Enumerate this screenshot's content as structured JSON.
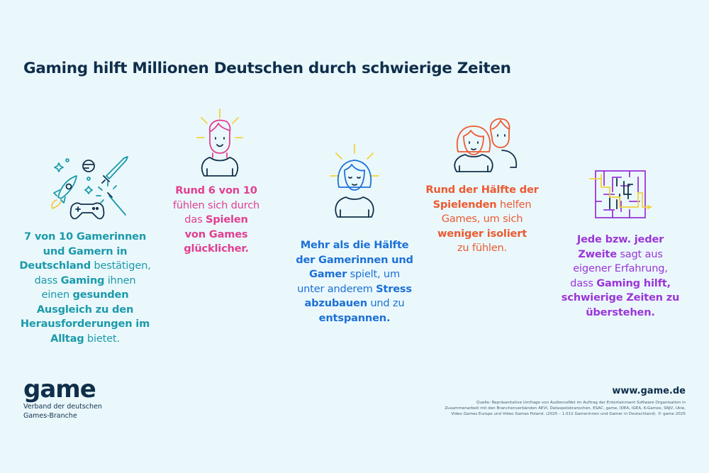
{
  "title": "Gaming hilft Millionen Deutschen durch schwierige Zeiten",
  "colors": {
    "background": "#eaf8fc",
    "title": "#0f2e4a",
    "teal": "#1b9aaa",
    "pink": "#e23f8f",
    "blue": "#1d71d6",
    "orange": "#ec5a30",
    "purple": "#9b36d8",
    "yellow_accent": "#f2d23c"
  },
  "stats": [
    {
      "icon": "gaming-items-icon",
      "color": "#1b9aaa",
      "lines": [
        [
          {
            "t": "7 von 10 Gamerinnen",
            "b": true
          }
        ],
        [
          {
            "t": "und Gamern in",
            "b": true
          }
        ],
        [
          {
            "t": "Deutschland",
            "b": true
          },
          {
            "t": " bestätigen,",
            "b": false
          }
        ],
        [
          {
            "t": "dass ",
            "b": false
          },
          {
            "t": "Gaming",
            "b": true
          },
          {
            "t": " ihnen",
            "b": false
          }
        ],
        [
          {
            "t": "einen ",
            "b": false
          },
          {
            "t": "gesunden",
            "b": true
          }
        ],
        [
          {
            "t": "Ausgleich zu den",
            "b": true
          }
        ],
        [
          {
            "t": "Herausforderungen im",
            "b": true
          }
        ],
        [
          {
            "t": "Alltag",
            "b": true
          },
          {
            "t": " bietet.",
            "b": false
          }
        ]
      ]
    },
    {
      "icon": "happy-man-icon",
      "color": "#e23f8f",
      "lines": [
        [
          {
            "t": "Rund 6 von 10",
            "b": true
          }
        ],
        [
          {
            "t": "fühlen sich durch",
            "b": false
          }
        ],
        [
          {
            "t": "das ",
            "b": false
          },
          {
            "t": "Spielen",
            "b": true
          }
        ],
        [
          {
            "t": "von Games",
            "b": true
          }
        ],
        [
          {
            "t": "glücklicher.",
            "b": true
          }
        ]
      ]
    },
    {
      "icon": "relaxed-woman-icon",
      "color": "#1d71d6",
      "lines": [
        [
          {
            "t": "Mehr als die Hälfte",
            "b": true
          }
        ],
        [
          {
            "t": "der Gamerinnen und",
            "b": true
          }
        ],
        [
          {
            "t": "Gamer",
            "b": true
          },
          {
            "t": " spielt, um",
            "b": false
          }
        ],
        [
          {
            "t": "unter anderem ",
            "b": false
          },
          {
            "t": "Stress",
            "b": true
          }
        ],
        [
          {
            "t": "abzubauen",
            "b": true
          },
          {
            "t": " und zu",
            "b": false
          }
        ],
        [
          {
            "t": "entspannen.",
            "b": true
          }
        ]
      ]
    },
    {
      "icon": "two-people-icon",
      "color": "#ec5a30",
      "lines": [
        [
          {
            "t": "Rund der Hälfte der",
            "b": true
          }
        ],
        [
          {
            "t": "Spielenden",
            "b": true
          },
          {
            "t": " helfen",
            "b": false
          }
        ],
        [
          {
            "t": "Games, um sich",
            "b": false
          }
        ],
        [
          {
            "t": "weniger isoliert",
            "b": true
          }
        ],
        [
          {
            "t": "zu fühlen.",
            "b": false
          }
        ]
      ]
    },
    {
      "icon": "maze-icon",
      "color": "#9b36d8",
      "lines": [
        [
          {
            "t": "Jede bzw. jeder",
            "b": true
          }
        ],
        [
          {
            "t": "Zweite",
            "b": true
          },
          {
            "t": " sagt aus",
            "b": false
          }
        ],
        [
          {
            "t": "eigener Erfahrung,",
            "b": false
          }
        ],
        [
          {
            "t": "dass ",
            "b": false
          },
          {
            "t": "Gaming hilft,",
            "b": true
          }
        ],
        [
          {
            "t": "schwierige Zeiten zu",
            "b": true
          }
        ],
        [
          {
            "t": "überstehen.",
            "b": true
          }
        ]
      ]
    }
  ],
  "footer": {
    "logo_word": "game",
    "logo_sub_1": "Verband der deutschen",
    "logo_sub_2": "Games-Branche",
    "website": "www.game.de",
    "source_1": "Quelle: Repräsentative Umfrage von AudienceNet im Auftrag der Entertainment Software Organisation in",
    "source_2": "Zusammenarbeit mit den Branchenverbänden AEVI, Dataspelsbranschen, ESAC, game, IDEA, IGEA, K-Games, SNJV, Ukie,",
    "source_3": "Video Games Europe und Video Games Poland. (2025 – 1.012 Gamerinnen und Gamer in Deutschland). © game 2025"
  }
}
